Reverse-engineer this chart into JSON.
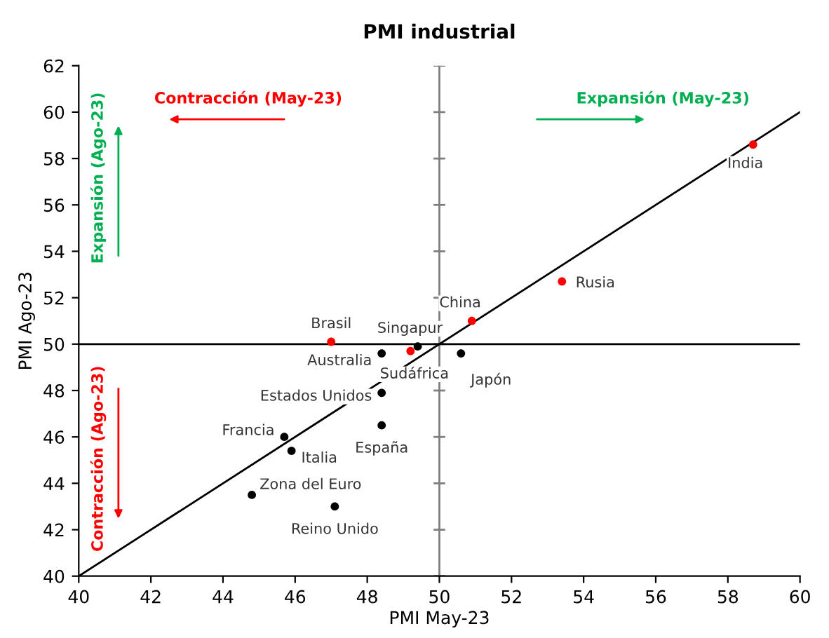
{
  "chart_data": {
    "type": "scatter",
    "title": "PMI industrial",
    "xlabel": "PMI May-23",
    "ylabel": "PMI Ago-23",
    "xlim": [
      40,
      60
    ],
    "xticks": [
      40,
      42,
      44,
      46,
      48,
      50,
      52,
      54,
      56,
      58,
      60
    ],
    "ylim": [
      40,
      62
    ],
    "yticks": [
      40,
      42,
      44,
      46,
      48,
      50,
      52,
      54,
      56,
      58,
      60,
      62
    ],
    "grid": false,
    "legend": false,
    "marker": "circle",
    "series": [
      {
        "x": [
          58.7,
          53.4,
          50.9,
          47.0,
          49.2,
          49.4,
          48.4,
          50.6,
          48.4,
          48.4,
          45.7,
          45.9,
          44.8,
          47.1
        ],
        "values": [
          58.6,
          52.7,
          51.0,
          50.1,
          49.7,
          49.9,
          49.6,
          49.6,
          47.9,
          46.5,
          46.0,
          45.4,
          43.5,
          43.0
        ],
        "colors": [
          "#ff0000",
          "#ff0000",
          "#ff0000",
          "#ff0000",
          "#ff0000",
          "#000000",
          "#000000",
          "#000000",
          "#000000",
          "#000000",
          "#000000",
          "#000000",
          "#000000",
          "#000000"
        ]
      },
      {
        "type": "line",
        "x": [
          40,
          60
        ],
        "values": [
          40,
          60
        ],
        "color": "#000000",
        "marker": "none"
      }
    ],
    "ref_lines": [
      {
        "axis": "x",
        "value": 50,
        "color": "#7f7f7f"
      },
      {
        "axis": "y",
        "value": 50,
        "color": "#000000"
      }
    ],
    "annotations": [
      {
        "text": "India",
        "x": 58.7,
        "y": 58.6
      },
      {
        "text": "Rusia",
        "x": 53.4,
        "y": 52.7
      },
      {
        "text": "China",
        "x": 50.9,
        "y": 51.0
      },
      {
        "text": "Brasil",
        "x": 47.0,
        "y": 50.1
      },
      {
        "text": "Sudáfrica",
        "x": 49.2,
        "y": 49.7
      },
      {
        "text": "Singapur",
        "x": 49.4,
        "y": 49.9
      },
      {
        "text": "Australia",
        "x": 48.4,
        "y": 49.6
      },
      {
        "text": "Japón",
        "x": 50.6,
        "y": 49.6
      },
      {
        "text": "Estados Unidos",
        "x": 48.4,
        "y": 47.9
      },
      {
        "text": "España",
        "x": 48.4,
        "y": 46.5
      },
      {
        "text": "Francia",
        "x": 45.7,
        "y": 46.0
      },
      {
        "text": "Italia",
        "x": 45.9,
        "y": 45.4
      },
      {
        "text": "Zona del Euro",
        "x": 44.8,
        "y": 43.5
      },
      {
        "text": "Reino Unido",
        "x": 47.1,
        "y": 43.0
      },
      "Contracción (May-23)",
      "Expansión (May-23)",
      "Expansión (Ago-23)",
      "Contracción (Ago-23)"
    ]
  }
}
